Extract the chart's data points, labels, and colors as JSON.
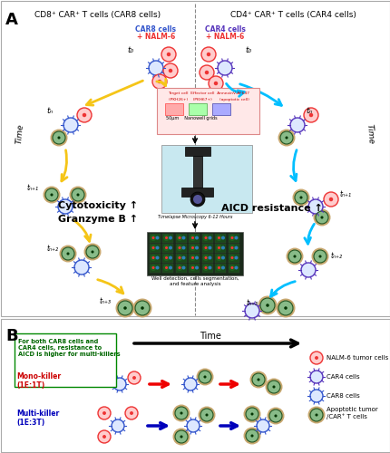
{
  "left_header": "CD8⁺ CAR⁺ T cells (CAR8 cells)",
  "right_header": "CD4⁺ CAR⁺ T cells (CAR4 cells)",
  "left_label1": "CAR8 cells",
  "left_label2": "+ NALM-6",
  "right_label1": "CAR4 cells",
  "right_label2": "+ NALM-6",
  "time_label": "Time",
  "cyto_label": "Cytotoxicity ↑",
  "gzb_label": "Granzyme B ↑",
  "aicd_label": "AICD resistance ↑",
  "timelapse_label": "Timelapse Microscopy 6-12 Hours",
  "well_label": "Well detection, cells segmentation,\nand feature analysis",
  "panel_B_text": "For both CAR8 cells and\nCAR4 cells, resistance to\nAICD is higher for multi-killers",
  "mono_label": "Mono-killer\n(1E:1T)",
  "multi_label": "Multi-killer\n(1E:3T)",
  "time_arrow_label": "Time",
  "legend_nalm6": "NALM-6 tumor cells",
  "legend_car4": "CAR4 cells",
  "legend_car8": "CAR8 cells",
  "legend_apoptotic": "Apoptotic tumor\n/CAR⁺ T cells",
  "bg_color": "#ffffff",
  "border_color": "#aaaaaa",
  "yellow_arrow": "#f5c518",
  "cyan_arrow": "#00bfff",
  "red_arrow": "#ee0000",
  "blue_arrow": "#0000bb",
  "nalm6_fill": "#ffcccc",
  "nalm6_edge": "#ee3333",
  "car8_fill": "#dde8ff",
  "car8_edge": "#3355cc",
  "car4_fill": "#dde8ff",
  "car4_edge": "#5533bb",
  "apoptotic_fill": "#88bb88",
  "apoptotic_edge": "#225522",
  "apoptotic_outer": "#c8a870",
  "car8_label_color": "#3355cc",
  "nalm6_label_color": "#ee3333",
  "car4_label_color": "#5533bb",
  "green_text_color": "#006600",
  "mono_label_color": "#cc0000",
  "multi_label_color": "#0000bb",
  "panel_b_border_color": "#008800"
}
